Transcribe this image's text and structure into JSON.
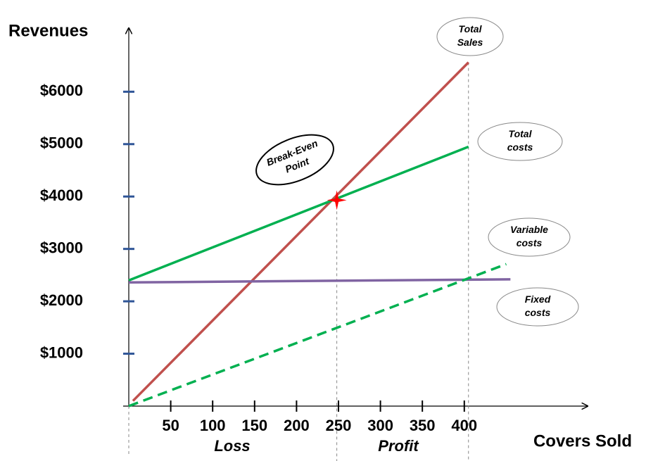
{
  "chart_data": {
    "type": "line",
    "ylabel": "Revenues",
    "xlabel": "Covers Sold",
    "xlim": [
      0,
      547
    ],
    "ylim": [
      0,
      7200
    ],
    "xticks": [
      50,
      100,
      150,
      200,
      250,
      300,
      350,
      400
    ],
    "yticks": [
      {
        "value": 1000,
        "label": "$1000"
      },
      {
        "value": 2000,
        "label": "$2000"
      },
      {
        "value": 3000,
        "label": "$3000"
      },
      {
        "value": 4000,
        "label": "$4000"
      },
      {
        "value": 5000,
        "label": "$5000"
      },
      {
        "value": 6000,
        "label": "$6000"
      }
    ],
    "series": [
      {
        "color": "#c0504d",
        "linestyle": "solid",
        "x": [
          5,
          405
        ],
        "values": [
          100,
          6560
        ]
      },
      {
        "color": "#00b050",
        "linestyle": "solid",
        "x": [
          0,
          405
        ],
        "values": [
          2400,
          4950
        ]
      },
      {
        "color": "#8064a2",
        "linestyle": "solid",
        "x": [
          0,
          455
        ],
        "values": [
          2360,
          2420
        ]
      },
      {
        "color": "#00b050",
        "linestyle": "dashed",
        "x": [
          0,
          450
        ],
        "values": [
          0,
          2710
        ]
      }
    ],
    "break_even": {
      "x": 248,
      "y": 3930,
      "color": "#ff0000"
    },
    "annotations": [
      {
        "lines": [
          "Total",
          "Sales"
        ]
      },
      {
        "lines": [
          "Total",
          "costs"
        ]
      },
      {
        "lines": [
          "Variable",
          "costs"
        ]
      },
      {
        "lines": [
          "Fixed",
          "costs"
        ]
      },
      {
        "lines": [
          "Break-Even",
          "Point"
        ]
      }
    ],
    "region_labels": [
      "Loss",
      "Profit"
    ]
  }
}
